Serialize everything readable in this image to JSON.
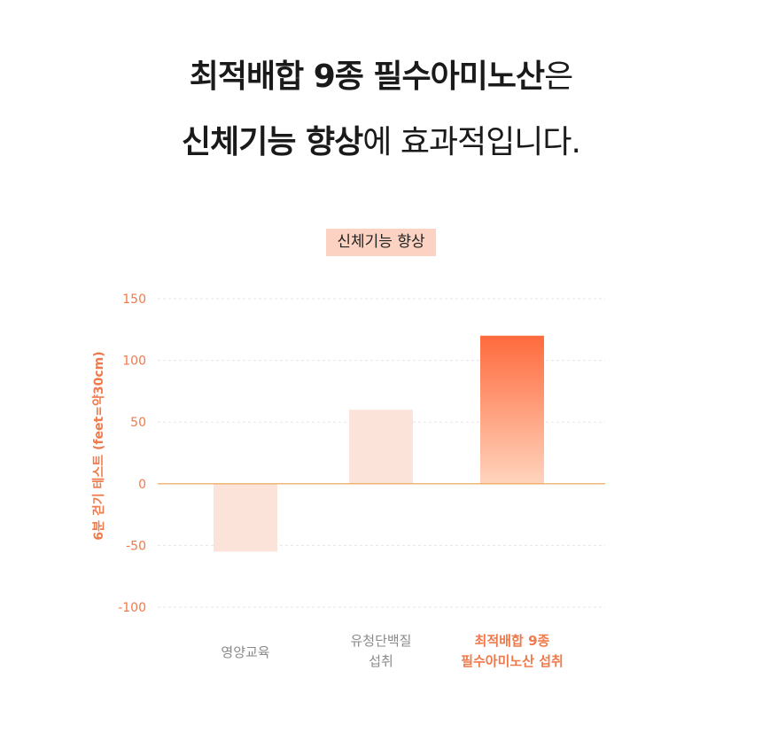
{
  "headline": {
    "line1_bold": "최적배합 9종 필수아미노산",
    "line1_rest": "은",
    "line2_bold": "신체기능 향상",
    "line2_rest": "에 효과적입니다."
  },
  "colors": {
    "accent": "#f07a4c",
    "bar_light": "#fbe3da",
    "bar_highlight_top": "#ff6a3d",
    "bar_highlight_bottom": "#ffd4bd",
    "title_bg": "#fcd3c2"
  },
  "chart_data": {
    "type": "bar",
    "title": "신체기능 향상",
    "ylabel": "6분 걷기 테스트 (feet=약30cm)",
    "xlabel": "",
    "ylim": [
      -100,
      150
    ],
    "yticks": [
      150,
      100,
      50,
      0,
      -50,
      -100
    ],
    "grid": true,
    "categories": [
      [
        "영양교육"
      ],
      [
        "유청단백질",
        "섭취"
      ],
      [
        "최적배합 9종",
        "필수아미노산 섭취"
      ]
    ],
    "values": [
      -55,
      60,
      120
    ],
    "highlight_index": 2
  }
}
